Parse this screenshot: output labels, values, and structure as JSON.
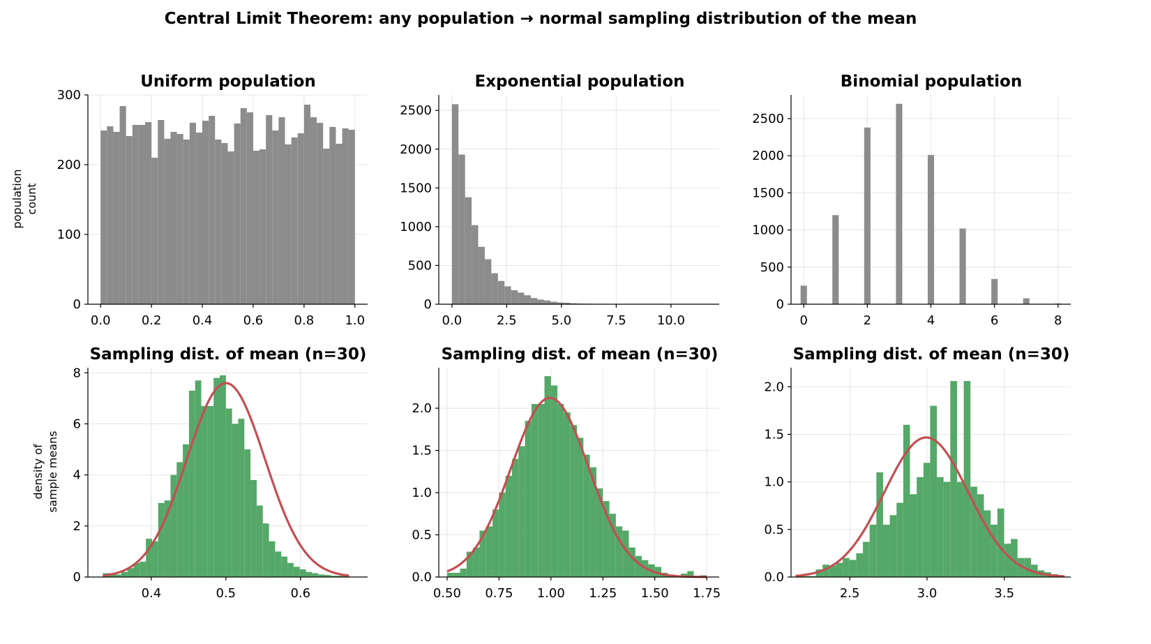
{
  "suptitle": "Central Limit Theorem: any population → normal sampling distribution of the mean",
  "colors": {
    "population_bar": "#8c8c8c",
    "sample_bar": "#55a868",
    "normal_curve": "#c44e52",
    "grid": "#e4e4e4"
  },
  "row_labels": {
    "top": [
      "population",
      "count"
    ],
    "bottom": [
      "density of",
      "sample means"
    ]
  },
  "chart_data": [
    {
      "type": "bar",
      "panel": "population-uniform",
      "title": "Uniform population",
      "xlim": [
        -0.05,
        1.05
      ],
      "ylim": [
        0,
        300
      ],
      "xticks": [
        0.0,
        0.2,
        0.4,
        0.6,
        0.8,
        1.0
      ],
      "xtick_labels": [
        "0.0",
        "0.2",
        "0.4",
        "0.6",
        "0.8",
        "1.0"
      ],
      "yticks": [
        0,
        100,
        200,
        300
      ],
      "ytick_labels": [
        "0",
        "100",
        "200",
        "300"
      ],
      "grid": true,
      "bins": {
        "start": 0.0,
        "width": 0.025
      },
      "values": [
        249,
        255,
        247,
        284,
        241,
        257,
        257,
        261,
        210,
        264,
        237,
        247,
        244,
        236,
        260,
        246,
        263,
        270,
        236,
        231,
        219,
        259,
        281,
        275,
        220,
        222,
        271,
        249,
        268,
        229,
        239,
        245,
        286,
        268,
        260,
        223,
        254,
        230,
        252,
        250
      ],
      "color": "#8c8c8c"
    },
    {
      "type": "bar",
      "panel": "population-exponential",
      "title": "Exponential population",
      "xlim": [
        -0.6,
        12.2
      ],
      "ylim": [
        0,
        2700
      ],
      "xticks": [
        0,
        2.5,
        5.0,
        7.5,
        10.0
      ],
      "xtick_labels": [
        "0.0",
        "2.5",
        "5.0",
        "7.5",
        "10.0"
      ],
      "yticks": [
        0,
        500,
        1000,
        1500,
        2000,
        2500
      ],
      "ytick_labels": [
        "0",
        "500",
        "1000",
        "1500",
        "2000",
        "2500"
      ],
      "grid": true,
      "bins": {
        "start": 0.0,
        "width": 0.3
      },
      "values": [
        2580,
        1930,
        1380,
        1020,
        740,
        580,
        400,
        300,
        230,
        180,
        150,
        115,
        80,
        60,
        48,
        32,
        22,
        18,
        12,
        9,
        7,
        5,
        4,
        3,
        2,
        2,
        1,
        1,
        1,
        1,
        1,
        1,
        1,
        0,
        0,
        0,
        0,
        0,
        0,
        0
      ],
      "color": "#8c8c8c"
    },
    {
      "type": "bar",
      "panel": "population-binomial",
      "title": "Binomial population",
      "xlim": [
        -0.4,
        8.4
      ],
      "ylim": [
        0,
        2820
      ],
      "xticks": [
        0,
        2,
        4,
        6,
        8
      ],
      "xtick_labels": [
        "0",
        "2",
        "4",
        "6",
        "8"
      ],
      "yticks": [
        0,
        500,
        1000,
        1500,
        2000,
        2500
      ],
      "ytick_labels": [
        "0",
        "500",
        "1000",
        "1500",
        "2000",
        "2500"
      ],
      "grid": true,
      "bins": {
        "start": 0.0,
        "width": 0.2
      },
      "x": [
        0,
        1,
        2,
        3,
        4,
        5,
        6,
        7,
        8
      ],
      "values": [
        250,
        1200,
        2380,
        2700,
        2010,
        1020,
        340,
        80,
        10
      ],
      "color": "#8c8c8c"
    },
    {
      "type": "bar",
      "panel": "sampling-uniform",
      "title": "Sampling dist. of mean (n=30)",
      "xlim": [
        0.315,
        0.69
      ],
      "ylim": [
        0,
        8.2
      ],
      "xticks": [
        0.4,
        0.5,
        0.6
      ],
      "xtick_labels": [
        "0.4",
        "0.5",
        "0.6"
      ],
      "yticks": [
        0,
        2,
        4,
        6,
        8
      ],
      "ytick_labels": [
        "0",
        "2",
        "4",
        "6",
        "8"
      ],
      "grid": true,
      "bins": {
        "start": 0.335,
        "width": 0.00825
      },
      "values": [
        0.15,
        0.15,
        0.1,
        0.2,
        0.35,
        0.55,
        0.6,
        1.5,
        1.4,
        2.9,
        3.0,
        4.0,
        4.5,
        5.2,
        7.3,
        7.7,
        6.7,
        6.7,
        7.8,
        7.9,
        6.6,
        6.0,
        6.2,
        5.0,
        3.8,
        2.8,
        2.1,
        1.4,
        1.0,
        0.8,
        0.55,
        0.4,
        0.3,
        0.2,
        0.15,
        0.1,
        0.08,
        0.05,
        0.05,
        0.1
      ],
      "curve": {
        "mean": 0.5,
        "sd": 0.0525
      },
      "color": "#55a868"
    },
    {
      "type": "bar",
      "panel": "sampling-exponential",
      "title": "Sampling dist. of mean (n=30)",
      "xlim": [
        0.46,
        1.81
      ],
      "ylim": [
        0,
        2.48
      ],
      "xticks": [
        0.5,
        0.75,
        1.0,
        1.25,
        1.5,
        1.75
      ],
      "xtick_labels": [
        "0.50",
        "0.75",
        "1.00",
        "1.25",
        "1.50",
        "1.75"
      ],
      "yticks": [
        0,
        0.5,
        1.0,
        1.5,
        2.0
      ],
      "ytick_labels": [
        "0.0",
        "0.5",
        "1.0",
        "1.5",
        "2.0"
      ],
      "grid": true,
      "bins": {
        "start": 0.5,
        "width": 0.03125
      },
      "values": [
        0.05,
        0.05,
        0.1,
        0.3,
        0.35,
        0.55,
        0.6,
        0.8,
        1.0,
        1.2,
        1.4,
        1.55,
        1.85,
        2.05,
        2.05,
        2.38,
        2.27,
        2.05,
        1.95,
        1.8,
        1.65,
        1.45,
        1.3,
        1.05,
        0.9,
        0.75,
        0.6,
        0.55,
        0.35,
        0.25,
        0.2,
        0.15,
        0.12,
        0.05,
        0.03,
        0.02,
        0.04,
        0.07,
        0.0,
        0.02
      ],
      "curve": {
        "mean": 0.995,
        "sd": 0.188
      },
      "color": "#55a868"
    },
    {
      "type": "bar",
      "panel": "sampling-binomial",
      "title": "Sampling dist. of mean (n=30)",
      "xlim": [
        2.12,
        3.93
      ],
      "ylim": [
        0,
        2.2
      ],
      "xticks": [
        2.5,
        3.0,
        3.5
      ],
      "xtick_labels": [
        "2.5",
        "3.0",
        "3.5"
      ],
      "yticks": [
        0,
        0.5,
        1.0,
        1.5,
        2.0
      ],
      "ytick_labels": [
        "0.0",
        "0.5",
        "1.0",
        "1.5",
        "2.0"
      ],
      "grid": true,
      "bins": {
        "start": 2.15,
        "width": 0.0435
      },
      "values": [
        0.02,
        0.01,
        0.01,
        0.08,
        0.13,
        0.12,
        0.15,
        0.2,
        0.18,
        0.25,
        0.37,
        0.55,
        1.1,
        0.55,
        0.65,
        0.78,
        1.6,
        0.87,
        1.05,
        1.2,
        1.8,
        1.05,
        1.0,
        2.06,
        1.0,
        2.06,
        0.95,
        0.87,
        0.7,
        0.55,
        0.72,
        0.35,
        0.4,
        0.2,
        0.2,
        0.13,
        0.07,
        0.05,
        0.03,
        0.01
      ],
      "curve": {
        "mean": 2.995,
        "sd": 0.272
      },
      "color": "#55a868"
    }
  ]
}
